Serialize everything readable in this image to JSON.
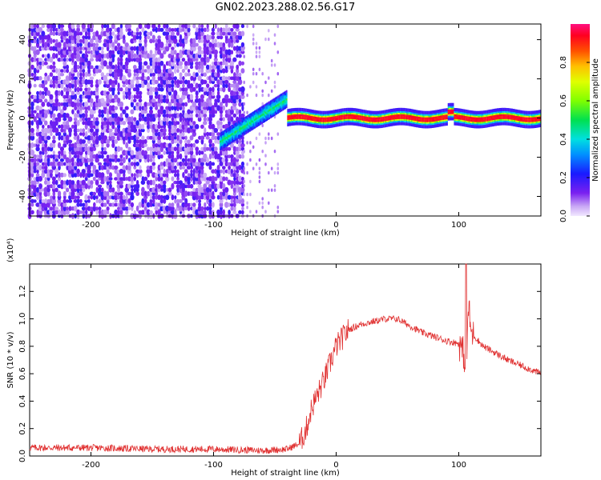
{
  "title": "GN02.2023.288.02.56.G17",
  "chart_data": [
    {
      "type": "heatmap",
      "xlabel": "Height of straight line (km)",
      "ylabel": "Frequency (Hz)",
      "xlim": [
        -250,
        167
      ],
      "ylim": [
        -50,
        48
      ],
      "x_ticks": [
        -200,
        -100,
        0,
        100
      ],
      "y_ticks": [
        -40,
        -20,
        0,
        20,
        40
      ],
      "grid": false,
      "colorbar": {
        "label": "Normalized spectral amplitude",
        "range": [
          0,
          1
        ],
        "ticks": [
          0.0,
          0.2,
          0.4,
          0.6,
          0.8
        ],
        "colormap": "rainbow (purple-blue-cyan-green-yellow-red)"
      },
      "features": {
        "noise_region_x": [
          -250,
          -75
        ],
        "sparse_fade_x": [
          -75,
          -45
        ],
        "signal_ramp": {
          "x": [
            -95,
            -40
          ],
          "freq": [
            -12,
            10
          ]
        },
        "signal_line": {
          "x": [
            -40,
            167
          ],
          "freq_center": 0,
          "half_width": 3
        },
        "signal_bump_x": 93
      }
    },
    {
      "type": "line",
      "xlabel": "Height of straight line (km)",
      "ylabel": "SNR (10 * v/v)",
      "y_exponent_label": "(x10⁴)",
      "xlim": [
        -250,
        167
      ],
      "ylim": [
        0,
        1.4
      ],
      "x_ticks": [
        -200,
        -100,
        0,
        100
      ],
      "y_ticks": [
        0.0,
        0.2,
        0.4,
        0.6,
        0.8,
        1.0,
        1.2
      ],
      "grid": false,
      "series": [
        {
          "color": "#e03030",
          "x": [
            -250,
            -200,
            -150,
            -100,
            -60,
            -40,
            -30,
            -25,
            -20,
            -10,
            0,
            10,
            20,
            30,
            40,
            50,
            60,
            70,
            80,
            90,
            100,
            104,
            106,
            108,
            110,
            120,
            140,
            167
          ],
          "y": [
            0.06,
            0.06,
            0.05,
            0.05,
            0.04,
            0.05,
            0.09,
            0.18,
            0.35,
            0.55,
            0.8,
            0.92,
            0.96,
            0.98,
            1.0,
            1.0,
            0.95,
            0.9,
            0.87,
            0.84,
            0.82,
            0.75,
            0.6,
            1.1,
            0.9,
            0.8,
            0.7,
            0.6
          ]
        }
      ]
    }
  ]
}
